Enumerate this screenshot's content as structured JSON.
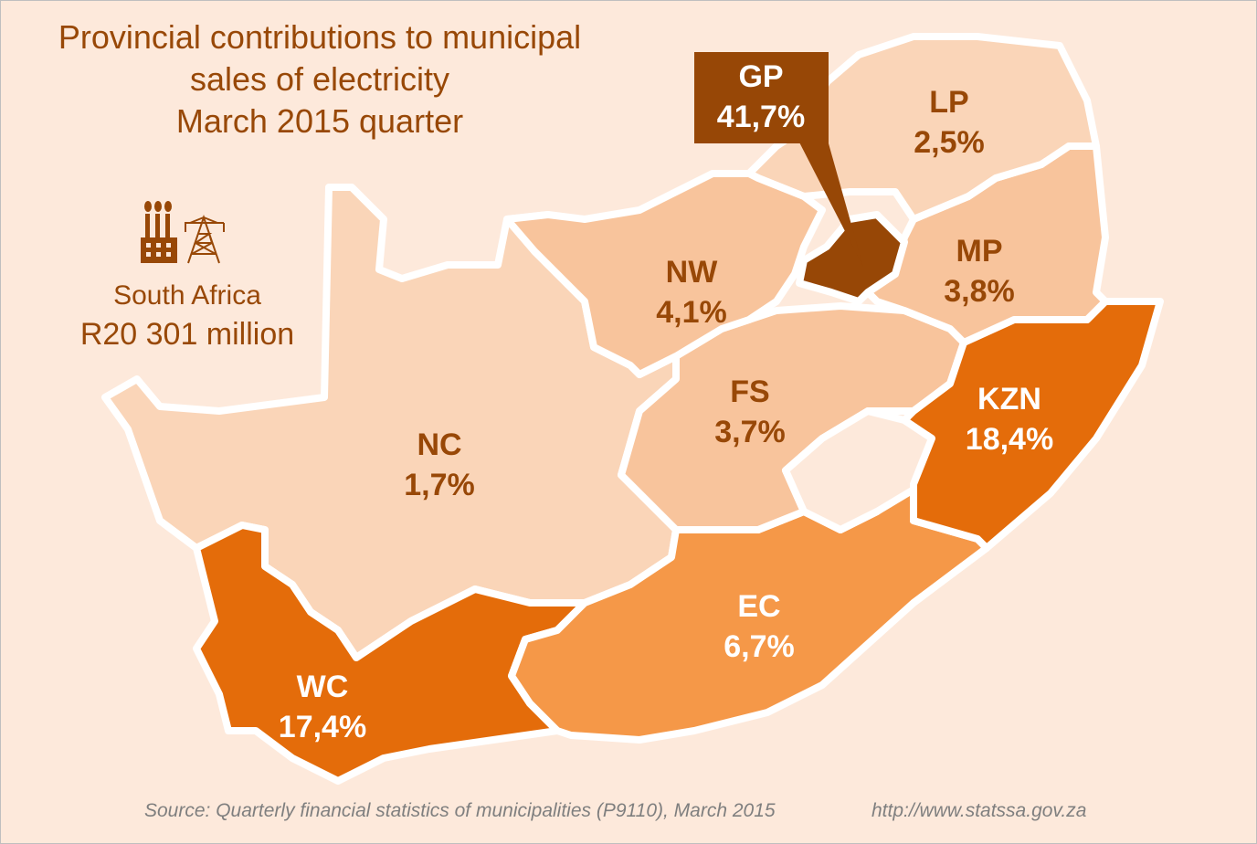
{
  "title": {
    "line1": "Provincial contributions to municipal",
    "line2": "sales of electricity",
    "line3": "March 2015 quarter"
  },
  "summary": {
    "country": "South Africa",
    "total": "R20 301 million",
    "icon": "factory-pylon-icon"
  },
  "provinces": {
    "GP": {
      "code": "GP",
      "value": "41,7%",
      "color": "#974706"
    },
    "LP": {
      "code": "LP",
      "value": "2,5%",
      "color": "#FAD5B8"
    },
    "MP": {
      "code": "MP",
      "value": "3,8%",
      "color": "#F8C49C"
    },
    "NW": {
      "code": "NW",
      "value": "4,1%",
      "color": "#F8C49C"
    },
    "FS": {
      "code": "FS",
      "value": "3,7%",
      "color": "#F8C49C"
    },
    "KZN": {
      "code": "KZN",
      "value": "18,4%",
      "color": "#E46C0A"
    },
    "NC": {
      "code": "NC",
      "value": "1,7%",
      "color": "#FAD5B8"
    },
    "EC": {
      "code": "EC",
      "value": "6,7%",
      "color": "#F59848"
    },
    "WC": {
      "code": "WC",
      "value": "17,4%",
      "color": "#E46C0A"
    }
  },
  "footer": {
    "source": "Source: Quarterly financial statistics of municipalities (P9110), March 2015",
    "url": "http://www.statssa.gov.za"
  }
}
